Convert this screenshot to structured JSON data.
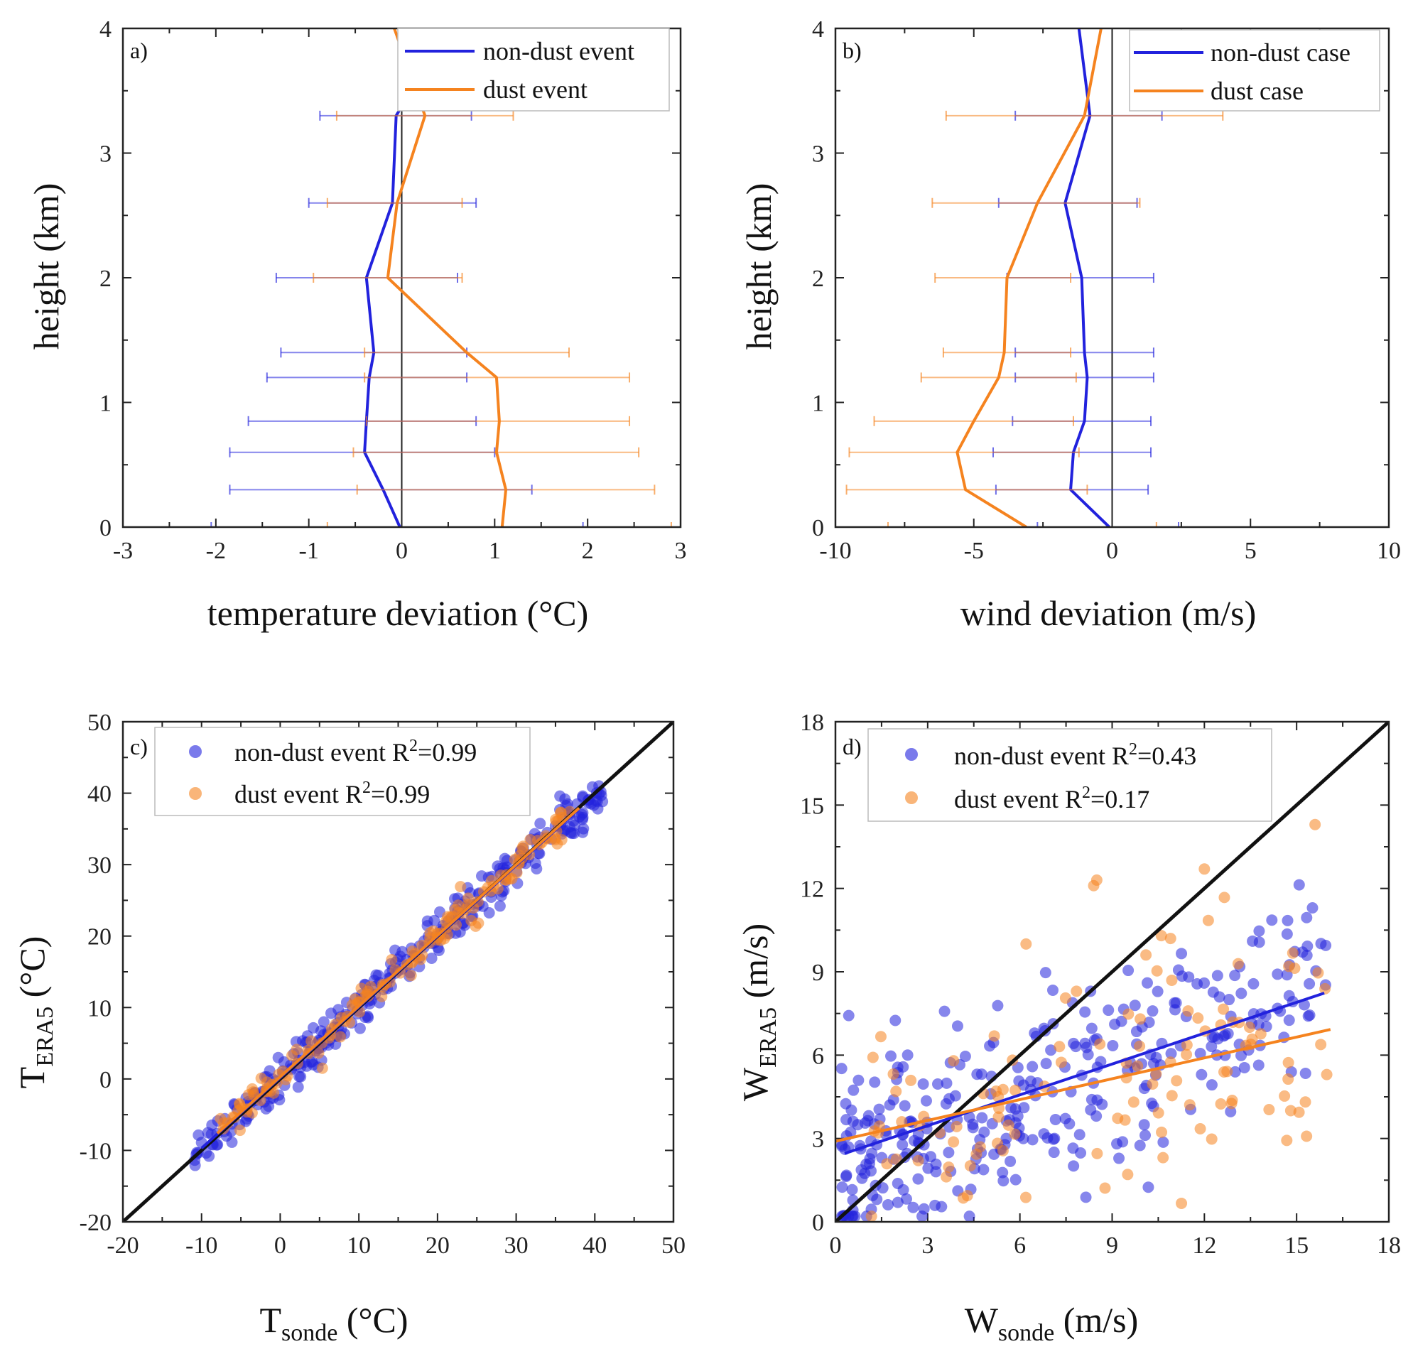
{
  "colors": {
    "non_dust": "#2222dd",
    "dust": "#f5831f",
    "identity": "#111111",
    "axis": "#222222"
  },
  "chart_data": [
    {
      "id": "a",
      "type": "line",
      "panel_label": "a)",
      "xlabel": "temperature deviation (°C)",
      "ylabel": "height (km)",
      "xlim": [
        -3,
        3
      ],
      "ylim": [
        0,
        4
      ],
      "xticks": [
        -3,
        -2,
        -1,
        0,
        1,
        2,
        3
      ],
      "yticks": [
        0,
        1,
        2,
        3,
        4
      ],
      "vline": 0,
      "legend_position": "top-right",
      "series": [
        {
          "name": "non-dust event",
          "color": "#2222dd",
          "points": [
            {
              "y": 0.0,
              "x": -0.02,
              "lo": -2.05,
              "hi": 1.95
            },
            {
              "y": 0.3,
              "x": -0.2,
              "lo": -1.85,
              "hi": 1.4
            },
            {
              "y": 0.6,
              "x": -0.4,
              "lo": -1.85,
              "hi": 1.0
            },
            {
              "y": 0.85,
              "x": -0.38,
              "lo": -1.65,
              "hi": 0.8
            },
            {
              "y": 1.2,
              "x": -0.35,
              "lo": -1.45,
              "hi": 0.7
            },
            {
              "y": 1.4,
              "x": -0.3,
              "lo": -1.3,
              "hi": 0.7
            },
            {
              "y": 2.0,
              "x": -0.38,
              "lo": -1.35,
              "hi": 0.6
            },
            {
              "y": 2.6,
              "x": -0.1,
              "lo": -1.0,
              "hi": 0.8
            },
            {
              "y": 3.3,
              "x": -0.06,
              "lo": -0.88,
              "hi": 0.75
            },
            {
              "y": 3.4,
              "x": 0.02,
              "lo": null,
              "hi": null
            },
            {
              "y": 4.0,
              "x": 0.03,
              "lo": null,
              "hi": null
            }
          ]
        },
        {
          "name": "dust event",
          "color": "#f5831f",
          "points": [
            {
              "y": 0.0,
              "x": 1.08,
              "lo": -0.8,
              "hi": 2.9
            },
            {
              "y": 0.3,
              "x": 1.12,
              "lo": -0.48,
              "hi": 2.72
            },
            {
              "y": 0.6,
              "x": 1.02,
              "lo": -0.52,
              "hi": 2.55
            },
            {
              "y": 0.85,
              "x": 1.05,
              "lo": -0.38,
              "hi": 2.45
            },
            {
              "y": 1.2,
              "x": 1.02,
              "lo": -0.4,
              "hi": 2.45
            },
            {
              "y": 1.4,
              "x": 0.7,
              "lo": -0.4,
              "hi": 1.8
            },
            {
              "y": 2.0,
              "x": -0.15,
              "lo": -0.95,
              "hi": 0.65
            },
            {
              "y": 2.6,
              "x": -0.05,
              "lo": -0.8,
              "hi": 0.65
            },
            {
              "y": 3.3,
              "x": 0.25,
              "lo": -0.7,
              "hi": 1.2
            },
            {
              "y": 4.0,
              "x": -0.08,
              "lo": null,
              "hi": null
            }
          ]
        }
      ]
    },
    {
      "id": "b",
      "type": "line",
      "panel_label": "b)",
      "xlabel": "wind deviation (m/s)",
      "ylabel": "height (km)",
      "xlim": [
        -10,
        10
      ],
      "ylim": [
        0,
        4
      ],
      "xticks": [
        -10,
        -5,
        0,
        5,
        10
      ],
      "yticks": [
        0,
        1,
        2,
        3,
        4
      ],
      "vline": 0,
      "legend_position": "top-right",
      "series": [
        {
          "name": "non-dust case",
          "color": "#2222dd",
          "points": [
            {
              "y": 0.0,
              "x": -0.1,
              "lo": -2.7,
              "hi": 2.4
            },
            {
              "y": 0.3,
              "x": -1.5,
              "lo": -4.2,
              "hi": 1.3
            },
            {
              "y": 0.6,
              "x": -1.4,
              "lo": -4.3,
              "hi": 1.4
            },
            {
              "y": 0.85,
              "x": -1.0,
              "lo": -3.6,
              "hi": 1.4
            },
            {
              "y": 1.2,
              "x": -0.9,
              "lo": -3.5,
              "hi": 1.5
            },
            {
              "y": 1.4,
              "x": -1.0,
              "lo": -3.5,
              "hi": 1.5
            },
            {
              "y": 2.0,
              "x": -1.1,
              "lo": -3.8,
              "hi": 1.5
            },
            {
              "y": 2.6,
              "x": -1.7,
              "lo": -4.1,
              "hi": 0.9
            },
            {
              "y": 3.3,
              "x": -0.8,
              "lo": -3.5,
              "hi": 1.8
            },
            {
              "y": 4.0,
              "x": -1.2,
              "lo": null,
              "hi": null
            }
          ]
        },
        {
          "name": "dust case",
          "color": "#f5831f",
          "points": [
            {
              "y": 0.0,
              "x": -3.1,
              "lo": -8.1,
              "hi": 1.6
            },
            {
              "y": 0.3,
              "x": -5.3,
              "lo": -9.6,
              "hi": -0.9
            },
            {
              "y": 0.6,
              "x": -5.6,
              "lo": -9.5,
              "hi": -1.2
            },
            {
              "y": 0.85,
              "x": -5.0,
              "lo": -8.6,
              "hi": -1.4
            },
            {
              "y": 1.2,
              "x": -4.1,
              "lo": -6.9,
              "hi": -1.3
            },
            {
              "y": 1.4,
              "x": -3.9,
              "lo": -6.1,
              "hi": -1.5
            },
            {
              "y": 2.0,
              "x": -3.8,
              "lo": -6.4,
              "hi": -1.5
            },
            {
              "y": 2.6,
              "x": -2.7,
              "lo": -6.5,
              "hi": 1.0
            },
            {
              "y": 3.3,
              "x": -1.0,
              "lo": -6.0,
              "hi": 4.0
            },
            {
              "y": 4.0,
              "x": -0.4,
              "lo": null,
              "hi": null
            }
          ]
        }
      ]
    },
    {
      "id": "c",
      "type": "scatter",
      "panel_label": "c)",
      "xlabel": {
        "main": "T",
        "sub": "sonde",
        "unit": " (°C)"
      },
      "ylabel": {
        "main": "T",
        "sub": "ERA5",
        "unit": " (°C)"
      },
      "xlim": [
        -20,
        50
      ],
      "ylim": [
        -20,
        50
      ],
      "xticks": [
        -20,
        -10,
        0,
        10,
        20,
        30,
        40,
        50
      ],
      "yticks": [
        -20,
        -10,
        0,
        10,
        20,
        30,
        40,
        50
      ],
      "identity_line": true,
      "legend_position": "top-left",
      "series": [
        {
          "name": "non-dust event",
          "r2_text": "=0.99",
          "color": "#2222dd",
          "fit": {
            "slope": 0.99,
            "intercept": 0.2,
            "x_range": [
              -10,
              38
            ]
          },
          "cloud": {
            "x_range": [
              -11,
              41
            ],
            "slope": 0.99,
            "intercept": 0.2,
            "scatter": 1.6,
            "n": 320
          }
        },
        {
          "name": "dust event",
          "r2_text": "=0.99",
          "color": "#f5831f",
          "fit": {
            "slope": 0.99,
            "intercept": 0.3,
            "x_range": [
              -8,
              38
            ]
          },
          "cloud": {
            "x_range": [
              -8,
              37
            ],
            "slope": 0.99,
            "intercept": 0.3,
            "scatter": 1.2,
            "n": 150
          }
        }
      ]
    },
    {
      "id": "d",
      "type": "scatter",
      "panel_label": "d)",
      "xlabel": {
        "main": "W",
        "sub": "sonde",
        "unit": " (m/s)"
      },
      "ylabel": {
        "main": "W",
        "sub": "ERA5",
        "unit": " (m/s)"
      },
      "xlim": [
        0,
        18
      ],
      "ylim": [
        0,
        18
      ],
      "xticks": [
        0,
        3,
        6,
        9,
        12,
        15,
        18
      ],
      "yticks": [
        0,
        3,
        6,
        9,
        12,
        15,
        18
      ],
      "identity_line": true,
      "legend_position": "top-left",
      "series": [
        {
          "name": "non-dust event",
          "r2_text": "=0.43",
          "color": "#2222dd",
          "fit": {
            "slope": 0.37,
            "intercept": 2.35,
            "x_range": [
              0.3,
              15.9
            ]
          },
          "cloud": {
            "x_range": [
              0.2,
              16
            ],
            "slope": 0.37,
            "intercept": 2.35,
            "scatter": 1.9,
            "n": 330
          }
        },
        {
          "name": "dust event",
          "r2_text": "=0.17",
          "color": "#f5831f",
          "fit": {
            "slope": 0.25,
            "intercept": 2.9,
            "x_range": [
              0,
              16.1
            ]
          },
          "cloud": {
            "x_range": [
              0.8,
              16.2
            ],
            "slope": 0.25,
            "intercept": 2.9,
            "scatter": 2.0,
            "n": 110
          },
          "outliers": [
            [
              8.4,
              12.1
            ],
            [
              8.5,
              12.3
            ],
            [
              12.0,
              12.7
            ],
            [
              15.6,
              14.3
            ],
            [
              10.6,
              10.3
            ],
            [
              10.9,
              10.2
            ],
            [
              6.2,
              10.0
            ],
            [
              8.6,
              6.4
            ]
          ]
        }
      ]
    }
  ]
}
